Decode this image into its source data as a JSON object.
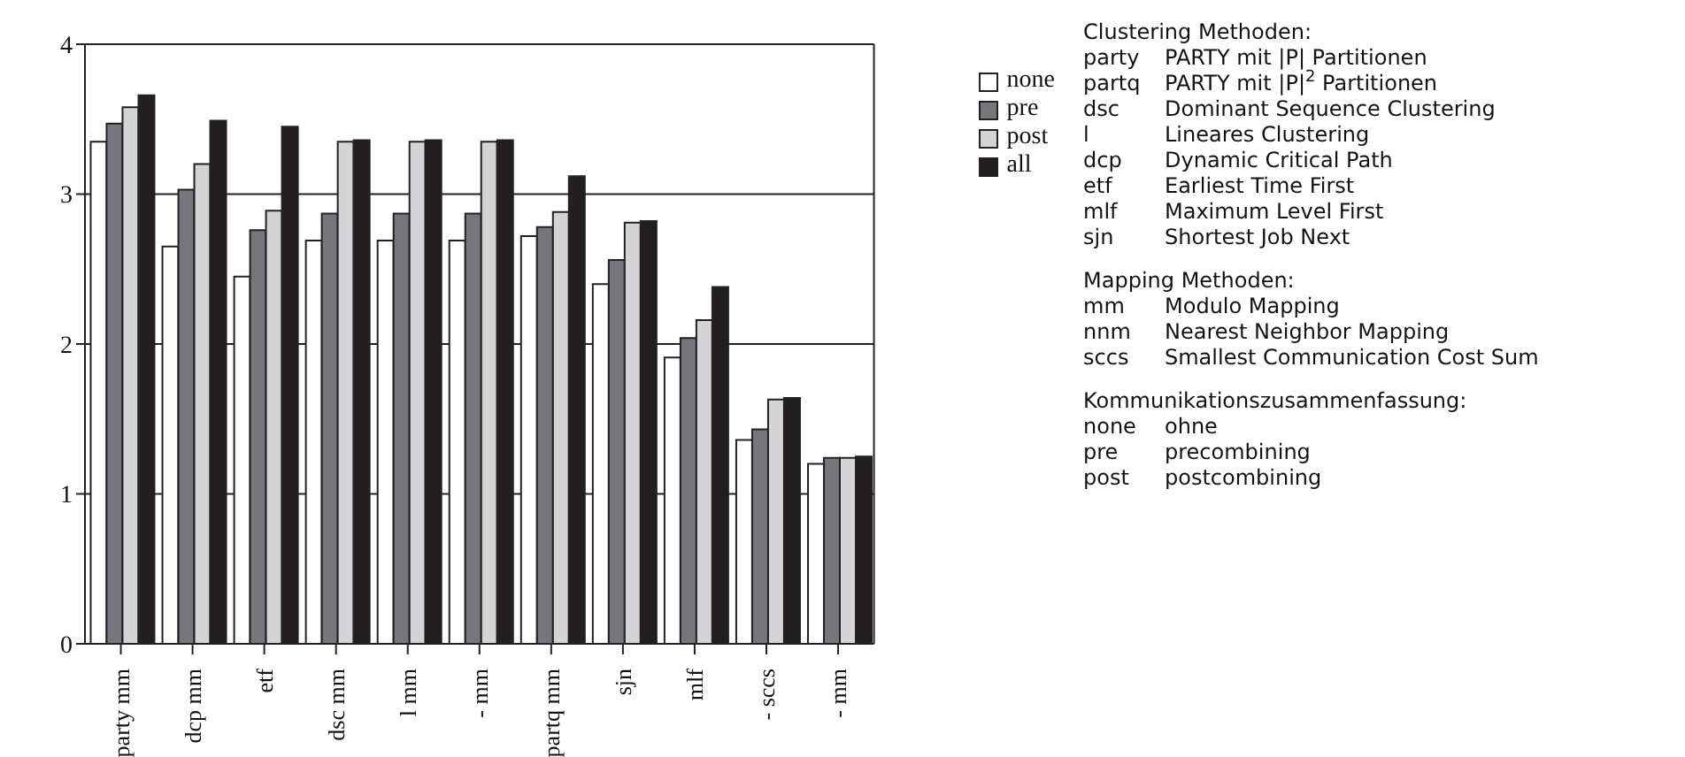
{
  "chart_data": {
    "type": "bar",
    "categories": [
      "party mm",
      "dcp mm",
      "etf",
      "dsc mm",
      "l mm",
      "- mm",
      "partq mm",
      "sjn",
      "mlf",
      "- sccs",
      "- mm"
    ],
    "series": [
      {
        "name": "none",
        "color": "#ffffff",
        "values": [
          3.35,
          2.65,
          2.45,
          2.69,
          2.69,
          2.69,
          2.72,
          2.4,
          1.91,
          1.36,
          1.2
        ]
      },
      {
        "name": "pre",
        "color": "#76767c",
        "values": [
          3.47,
          3.03,
          2.76,
          2.87,
          2.87,
          2.87,
          2.78,
          2.56,
          2.04,
          1.43,
          1.24
        ]
      },
      {
        "name": "post",
        "color": "#d4d4d6",
        "values": [
          3.58,
          3.2,
          2.89,
          3.35,
          3.35,
          3.35,
          2.88,
          2.81,
          2.16,
          1.63,
          1.24
        ]
      },
      {
        "name": "all",
        "color": "#231f20",
        "values": [
          3.66,
          3.49,
          3.45,
          3.36,
          3.36,
          3.36,
          3.12,
          2.82,
          2.38,
          1.64,
          1.25
        ]
      }
    ],
    "ylim": [
      0,
      4
    ],
    "yticks": [
      0,
      1,
      2,
      3,
      4
    ],
    "grid": "y",
    "legend": "right",
    "annotations": [
      "Clustering Methoden:",
      "party\tPARTY mit |P| Partitionen",
      "partq\tPARTY mit |P|$^{2}$ Partitionen",
      "dsc\tDominant Sequence Clustering",
      "l\tLineares Clustering",
      "dcp\tDynamic Critical Path",
      "etf\tEarliest Time First",
      "mlf\tMaximum Level First",
      "sjn\tShortest Job Next",
      "Mapping Methoden:",
      "mm\tModulo Mapping",
      "nnm\tNearest Neighbor Mapping",
      "sccs\tSmallest Communication Cost Sum",
      "Kommunikationszusammenfassung:",
      "none\tohne",
      "pre\tprecombining",
      "post\tpostcombining"
    ]
  }
}
